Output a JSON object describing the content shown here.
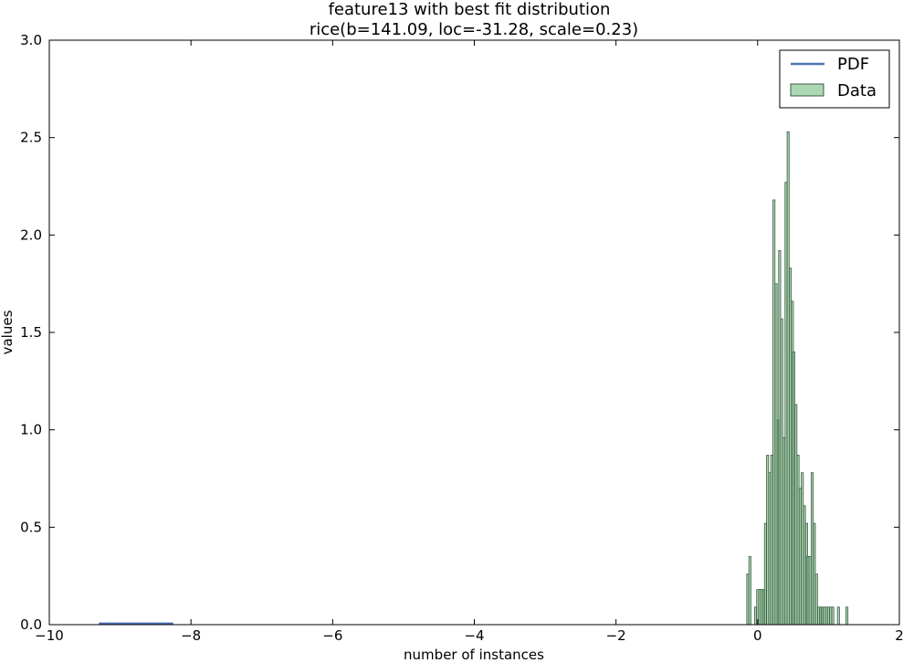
{
  "chart_data": {
    "type": "histogram",
    "title": "feature13 with best fit distribution",
    "subtitle": "rice(b=141.09, loc=-31.28, scale=0.23)",
    "xlabel": "number of instances",
    "ylabel": "values",
    "xlim": [
      -10,
      2
    ],
    "ylim": [
      0,
      3.0
    ],
    "x_ticks": [
      -10,
      -8,
      -6,
      -4,
      -2,
      0,
      2
    ],
    "x_tick_labels": [
      "−10",
      "−8",
      "−6",
      "−4",
      "−2",
      "0",
      "2"
    ],
    "y_ticks": [
      0,
      0.5,
      1.0,
      1.5,
      2.0,
      2.5,
      3.0
    ],
    "y_tick_labels": [
      "0.0",
      "0.5",
      "1.0",
      "1.5",
      "2.0",
      "2.5",
      "3.0"
    ],
    "grid": false,
    "legend": {
      "position": "top-right",
      "entries": [
        "PDF",
        "Data"
      ]
    },
    "series": [
      {
        "name": "PDF",
        "kind": "line",
        "color": "#4c72b0",
        "x": [
          -9.3,
          -8.25
        ],
        "y": [
          0.005,
          0.005
        ]
      },
      {
        "name": "Data",
        "kind": "bar",
        "color": "#8fc99a",
        "edge_color": "#3c5a40",
        "bin_width": 0.0286,
        "x": [
          -0.14,
          -0.11,
          -0.03,
          0.0,
          0.03,
          0.06,
          0.09,
          0.11,
          0.14,
          0.17,
          0.2,
          0.23,
          0.26,
          0.29,
          0.31,
          0.34,
          0.37,
          0.4,
          0.43,
          0.46,
          0.49,
          0.51,
          0.54,
          0.57,
          0.6,
          0.63,
          0.66,
          0.69,
          0.71,
          0.74,
          0.77,
          0.8,
          0.83,
          0.86,
          0.89,
          0.91,
          0.94,
          0.97,
          1.0,
          1.03,
          1.06,
          1.14,
          1.26
        ],
        "y": [
          0.26,
          0.35,
          0.09,
          0.18,
          0.18,
          0.18,
          0.18,
          0.52,
          0.87,
          0.78,
          0.87,
          2.18,
          1.75,
          1.05,
          1.92,
          1.57,
          0.96,
          2.27,
          2.53,
          1.83,
          1.66,
          1.4,
          1.13,
          0.87,
          0.7,
          0.78,
          0.61,
          0.52,
          0.35,
          0.35,
          0.78,
          0.52,
          0.26,
          0.09,
          0.09,
          0.09,
          0.09,
          0.09,
          0.09,
          0.09,
          0.09,
          0.09,
          0.09
        ]
      }
    ]
  }
}
